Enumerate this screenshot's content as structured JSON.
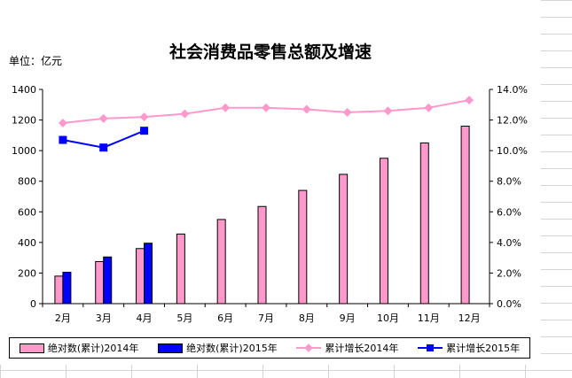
{
  "chart_data": {
    "type": "bar",
    "title": "社会消费品零售总额及增速",
    "unit_label": "单位：亿元",
    "categories": [
      "2月",
      "3月",
      "4月",
      "5月",
      "6月",
      "7月",
      "8月",
      "9月",
      "10月",
      "11月",
      "12月"
    ],
    "y_left": {
      "min": 0,
      "max": 1400,
      "step": 200,
      "ticks": [
        "0",
        "200",
        "400",
        "600",
        "800",
        "1000",
        "1200",
        "1400"
      ]
    },
    "y_right": {
      "min": 0,
      "max": 14,
      "step": 2,
      "ticks": [
        "0.0%",
        "2.0%",
        "4.0%",
        "6.0%",
        "8.0%",
        "10.0%",
        "12.0%",
        "14.0%"
      ]
    },
    "series": [
      {
        "name": "绝对数(累计)2014年",
        "type": "bar",
        "axis": "left",
        "color": "#FF99CC",
        "values": [
          180,
          275,
          360,
          455,
          550,
          635,
          740,
          845,
          950,
          1050,
          1160
        ]
      },
      {
        "name": "绝对数(累计)2015年",
        "type": "bar",
        "axis": "left",
        "color": "#0000FF",
        "values": [
          205,
          305,
          395,
          null,
          null,
          null,
          null,
          null,
          null,
          null,
          null
        ]
      },
      {
        "name": "累计增长2014年",
        "type": "line",
        "axis": "right",
        "color": "#FF99CC",
        "marker": "diamond",
        "values": [
          11.8,
          12.1,
          12.2,
          12.4,
          12.8,
          12.8,
          12.7,
          12.5,
          12.6,
          12.8,
          13.3
        ]
      },
      {
        "name": "累计增长2015年",
        "type": "line",
        "axis": "right",
        "color": "#0000FF",
        "marker": "square",
        "values": [
          10.7,
          10.2,
          11.3,
          null,
          null,
          null,
          null,
          null,
          null,
          null,
          null
        ]
      }
    ],
    "grid": false,
    "legend_position": "bottom"
  }
}
